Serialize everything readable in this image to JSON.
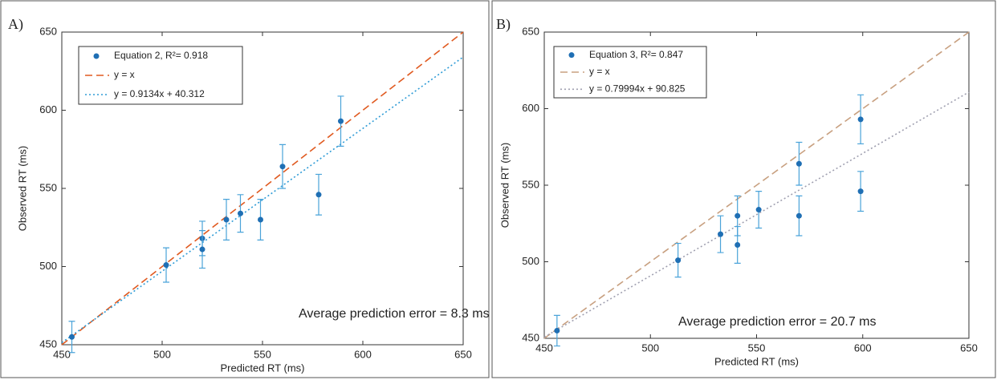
{
  "chart_data": [
    {
      "type": "scatter",
      "panel_label": "A)",
      "xlabel": "Predicted RT (ms)",
      "ylabel": "Observed RT (ms)",
      "annotation": "Average prediction error = 8.3 ms",
      "xlim": [
        450,
        650
      ],
      "ylim": [
        450,
        650
      ],
      "xticks": [
        450,
        500,
        550,
        600,
        650
      ],
      "yticks": [
        450,
        500,
        550,
        600,
        650
      ],
      "series": [
        {
          "name": "Equation 2, R²= 0.918",
          "color": "#1f6fb4",
          "errorcolor": "#4aa3d9",
          "x": [
            455,
            502,
            520,
            520,
            532,
            539,
            549,
            560,
            578,
            589
          ],
          "values": [
            455,
            501,
            518,
            511,
            530,
            534,
            530,
            564,
            546,
            593
          ],
          "errors": [
            10,
            11,
            11,
            12,
            13,
            12,
            13,
            14,
            13,
            16
          ]
        },
        {
          "name": "y = x",
          "color": "#e05a20",
          "style": "dashed",
          "x": [
            450,
            650
          ],
          "values": [
            450,
            650
          ]
        },
        {
          "name": "y = 0.9134x + 40.312",
          "color": "#2e9bd6",
          "style": "dotted",
          "x": [
            450,
            650
          ],
          "values": [
            451.34,
            634.02
          ]
        }
      ]
    },
    {
      "type": "scatter",
      "panel_label": "B)",
      "xlabel": "Predicted RT (ms)",
      "ylabel": "Observed RT (ms)",
      "annotation": "Average prediction error = 20.7 ms",
      "xlim": [
        450,
        650
      ],
      "ylim": [
        450,
        650
      ],
      "xticks": [
        450,
        500,
        550,
        600,
        650
      ],
      "yticks": [
        450,
        500,
        550,
        600,
        650
      ],
      "series": [
        {
          "name": "Equation 3, R²= 0.847",
          "color": "#1f6fb4",
          "errorcolor": "#4aa3d9",
          "x": [
            456,
            513,
            533,
            541,
            541,
            551,
            570,
            570,
            599,
            599
          ],
          "values": [
            455,
            501,
            518,
            530,
            511,
            534,
            564,
            530,
            593,
            546
          ],
          "errors": [
            10,
            11,
            12,
            13,
            12,
            12,
            14,
            13,
            16,
            13
          ]
        },
        {
          "name": "y = x",
          "color": "#c8a080",
          "style": "dashed",
          "x": [
            450,
            650
          ],
          "values": [
            450,
            650
          ]
        },
        {
          "name": "y = 0.79994x + 90.825",
          "color": "#a0a0b0",
          "style": "dotted",
          "x": [
            450,
            650
          ],
          "values": [
            450.8,
            610.79
          ]
        }
      ]
    }
  ]
}
